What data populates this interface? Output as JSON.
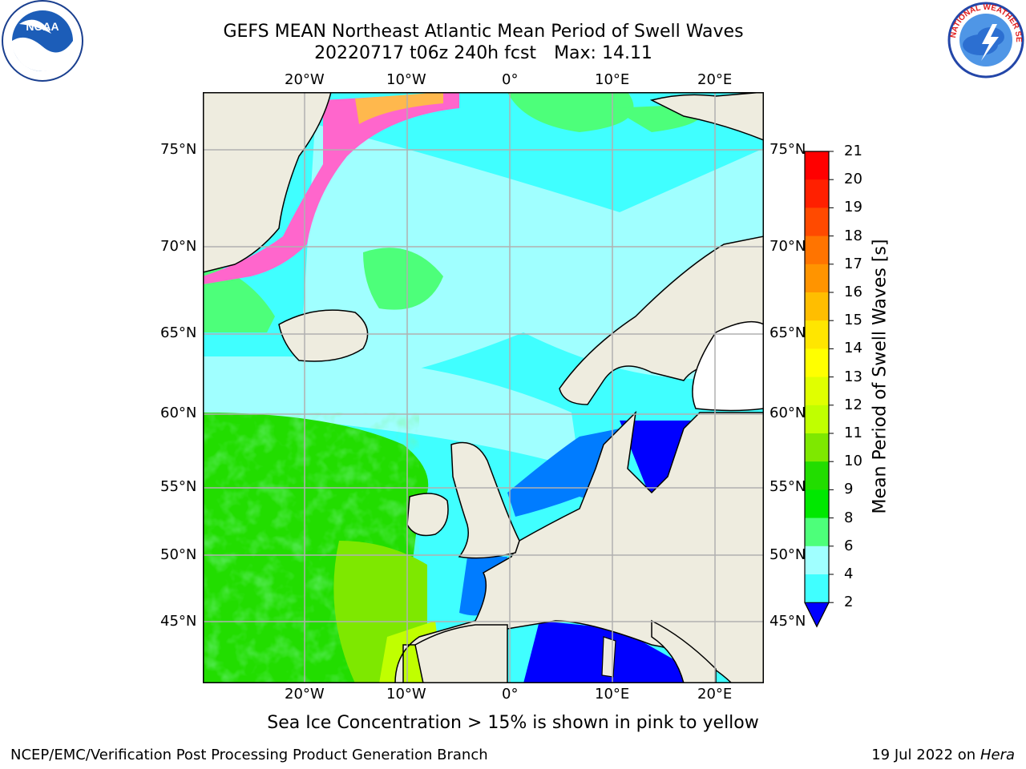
{
  "title": {
    "line1": "GEFS MEAN Northeast Atlantic Mean Period of Swell Waves",
    "line2_run": "20220717 t06z 240h fcst",
    "line2_max": "Max: 14.11"
  },
  "map": {
    "lon_ticks": [
      "20°W",
      "10°W",
      "0°",
      "10°E",
      "20°E"
    ],
    "lat_ticks": [
      "75°N",
      "70°N",
      "65°N",
      "60°N",
      "55°N",
      "50°N",
      "45°N"
    ]
  },
  "colorbar": {
    "title": "Mean Period of Swell Waves [s]",
    "labels": [
      "21",
      "20",
      "19",
      "18",
      "17",
      "16",
      "15",
      "14",
      "13",
      "12",
      "11",
      "10",
      "9",
      "8",
      "6",
      "4",
      "2"
    ],
    "colors": [
      "#ff0000",
      "#ff2000",
      "#ff4a00",
      "#ff7400",
      "#ff9400",
      "#ffbe00",
      "#ffe600",
      "#ffff00",
      "#e0ff00",
      "#c0ff00",
      "#7ee800",
      "#22dd00",
      "#00e800",
      "#4dff7a",
      "#a0ffff",
      "#40ffff",
      "#00eaff",
      "#007cff"
    ],
    "extend_color": "#0000ff"
  },
  "note": "Sea Ice Concentration > 15% is shown in pink to yellow",
  "footer": {
    "left": "NCEP/EMC/Verification Post Processing Product Generation Branch",
    "right_date": "19 Jul 2022 on",
    "right_host": "Hera"
  },
  "logos": {
    "noaa_text": "NOAA",
    "nws_text": "NATIONAL WEATHER SERVICE"
  }
}
